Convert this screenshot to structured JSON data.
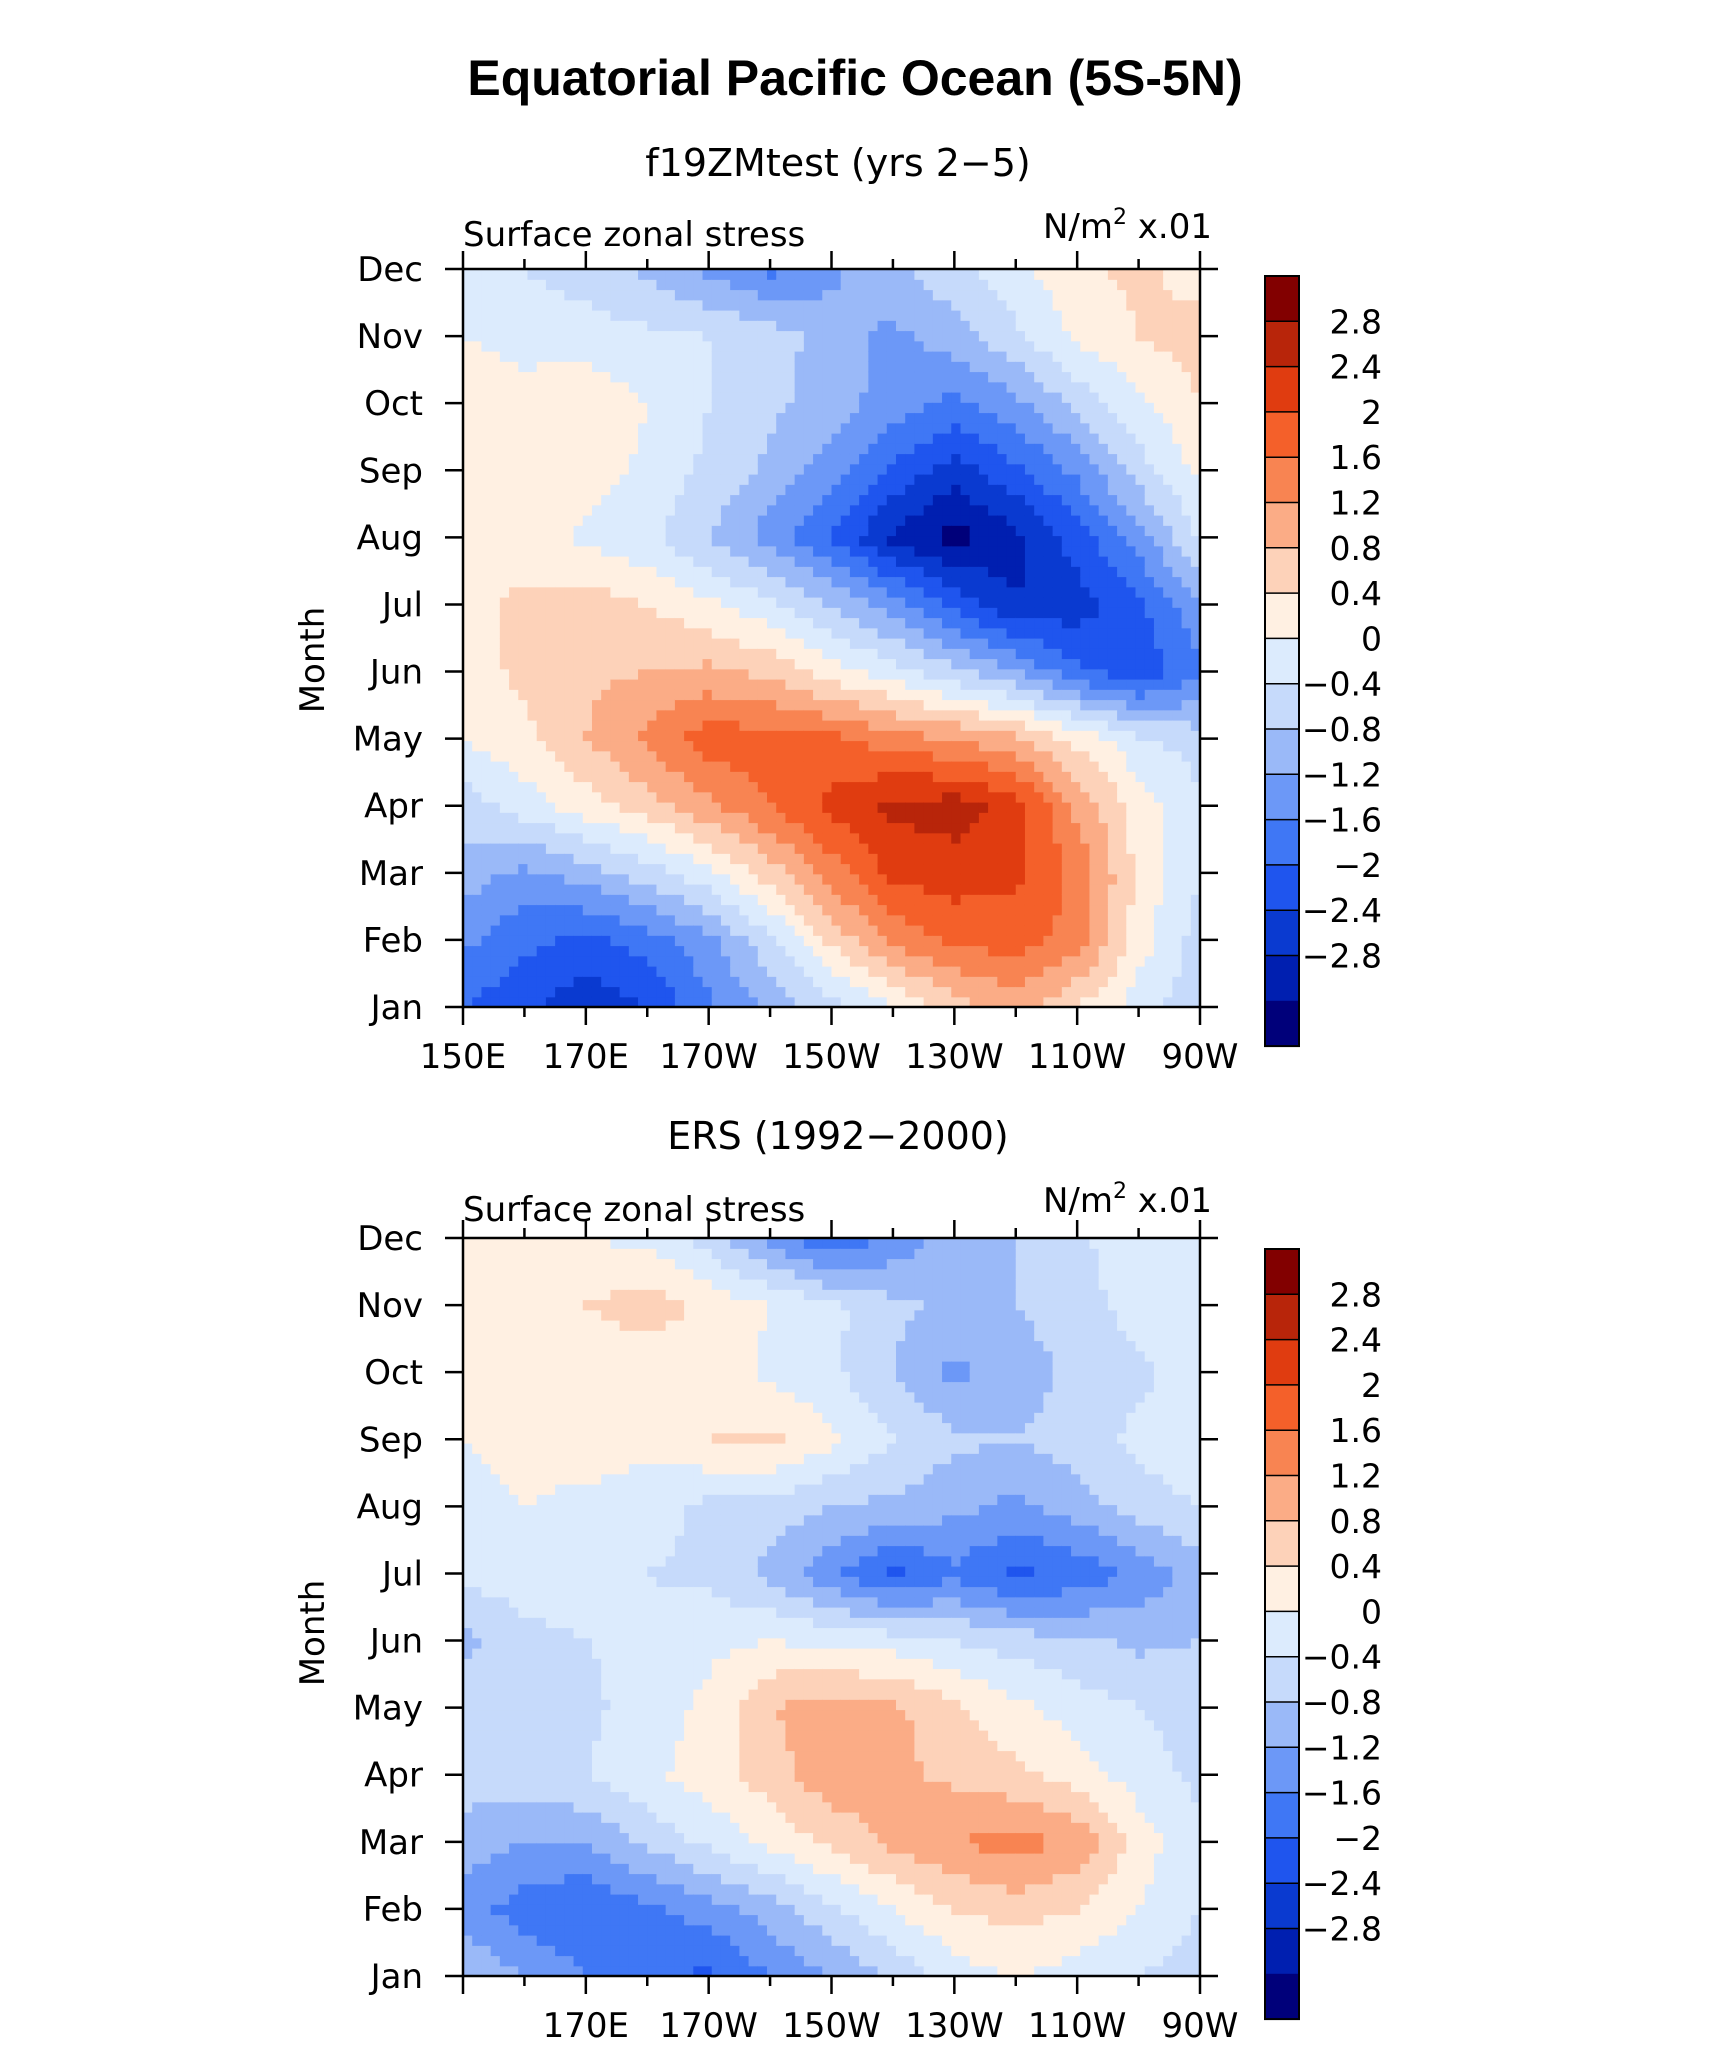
{
  "figure": {
    "title": "Equatorial Pacific Ocean (5S-5N)"
  },
  "colors": [
    "#00007a",
    "#001fb0",
    "#0a3ad0",
    "#1f55ee",
    "#3f77f5",
    "#6c98f7",
    "#9ab9f8",
    "#c6dafb",
    "#dcebfd",
    "#fff0e2",
    "#fdd2b9",
    "#fbac86",
    "#f88452",
    "#f4602a",
    "#e03c10",
    "#b8250a",
    "#820000"
  ],
  "colorbar_labels": [
    "2.8",
    "2.4",
    "2",
    "1.6",
    "1.2",
    "0.8",
    "0.4",
    "0",
    "−0.4",
    "−0.8",
    "−1.2",
    "−1.6",
    "−2",
    "−2.4",
    "−2.8"
  ],
  "chart_data": [
    {
      "type": "heatmap",
      "subtitle": "f19ZMtest (yrs 2−5)",
      "left_label": "Surface zonal stress",
      "right_label": "N/m",
      "right_label_sup": "2",
      "right_label_scale": " x.01",
      "ylabel": "Month",
      "xlabel": "",
      "x_tick_labels": [
        "150E",
        "170E",
        "170W",
        "150W",
        "130W",
        "110W",
        "90W"
      ],
      "y_tick_labels": [
        "Jan",
        "Feb",
        "Mar",
        "Apr",
        "May",
        "Jun",
        "Jul",
        "Aug",
        "Sep",
        "Oct",
        "Nov",
        "Dec"
      ],
      "x_lon_east": [
        150,
        160,
        170,
        180,
        190,
        200,
        210,
        220,
        230,
        240,
        250,
        260,
        270
      ],
      "y_month": [
        1,
        2,
        3,
        4,
        5,
        6,
        7,
        8,
        9,
        10,
        11,
        12
      ],
      "z": [
        [
          -1.6,
          -1.9,
          -2.3,
          -2.0,
          -1.3,
          -0.7,
          -0.2,
          0.4,
          1.0,
          1.4,
          0.8,
          0.2,
          -0.3
        ],
        [
          -1.1,
          -1.5,
          -1.7,
          -1.4,
          -0.9,
          -0.1,
          0.9,
          1.7,
          2.1,
          2.2,
          1.8,
          0.6,
          -0.2
        ],
        [
          -0.6,
          -0.9,
          -0.6,
          -0.2,
          0.3,
          1.0,
          1.8,
          2.5,
          2.6,
          2.5,
          1.9,
          0.7,
          0.0
        ],
        [
          -0.2,
          0.2,
          0.6,
          1.0,
          1.5,
          2.0,
          2.5,
          2.9,
          3.0,
          2.6,
          1.5,
          0.6,
          0.1
        ],
        [
          0.4,
          0.7,
          1.2,
          1.7,
          2.2,
          2.2,
          2.1,
          1.8,
          1.6,
          1.3,
          0.7,
          0.1,
          -0.2
        ],
        [
          0.6,
          0.9,
          1.1,
          1.2,
          1.3,
          1.1,
          0.6,
          0.2,
          -0.3,
          -0.8,
          -1.5,
          -1.9,
          -1.3
        ],
        [
          0.7,
          0.9,
          1.0,
          0.8,
          0.5,
          0.1,
          -0.4,
          -1.0,
          -1.7,
          -2.4,
          -2.2,
          -1.7,
          -0.9
        ],
        [
          0.7,
          0.6,
          0.3,
          0.1,
          -0.4,
          -1.0,
          -1.6,
          -2.5,
          -3.0,
          -2.5,
          -1.8,
          -1.0,
          0.1
        ],
        [
          0.7,
          0.5,
          0.6,
          0.3,
          -0.1,
          -0.5,
          -1.0,
          -1.7,
          -2.2,
          -1.7,
          -1.1,
          -0.2,
          0.5
        ],
        [
          0.6,
          0.5,
          0.7,
          0.4,
          0.0,
          -0.3,
          -0.6,
          -1.0,
          -1.3,
          -0.9,
          -0.3,
          0.3,
          0.8
        ],
        [
          0.4,
          0.3,
          0.2,
          0.1,
          0.0,
          -0.2,
          -0.6,
          -0.9,
          -0.6,
          -0.1,
          0.5,
          0.8,
          1.0
        ],
        [
          0.3,
          0.0,
          -0.2,
          -0.5,
          -0.9,
          -1.3,
          -0.9,
          -0.5,
          -0.1,
          0.3,
          0.7,
          0.9,
          0.6
        ]
      ]
    },
    {
      "type": "heatmap",
      "subtitle": "ERS (1992−2000)",
      "left_label": "Surface zonal stress",
      "right_label": "N/m",
      "right_label_sup": "2",
      "right_label_scale": " x.01",
      "ylabel": "Month",
      "xlabel": "",
      "x_tick_labels": [
        "",
        "170E",
        "170W",
        "150W",
        "130W",
        "110W",
        "90W"
      ],
      "y_tick_labels": [
        "Jan",
        "Feb",
        "Mar",
        "Apr",
        "May",
        "Jun",
        "Jul",
        "Aug",
        "Sep",
        "Oct",
        "Nov",
        "Dec"
      ],
      "x_lon_east": [
        150,
        160,
        170,
        180,
        190,
        200,
        210,
        220,
        230,
        240,
        250,
        260,
        270
      ],
      "y_month": [
        1,
        2,
        3,
        4,
        5,
        6,
        7,
        8,
        9,
        10,
        11,
        12
      ],
      "z": [
        [
          -0.4,
          -0.8,
          -1.2,
          -1.4,
          -1.7,
          -1.2,
          -0.8,
          -0.3,
          0.2,
          0.4,
          0.2,
          0.0,
          -0.2
        ],
        [
          -1.0,
          -1.4,
          -1.6,
          -1.3,
          -1.0,
          -0.6,
          -0.1,
          0.4,
          0.8,
          1.0,
          0.8,
          0.4,
          0.0
        ],
        [
          -0.6,
          -0.8,
          -0.8,
          -0.3,
          0.1,
          0.5,
          0.9,
          1.3,
          1.6,
          1.8,
          1.5,
          0.6,
          0.1
        ],
        [
          -0.2,
          -0.2,
          0.0,
          0.3,
          0.6,
          1.0,
          1.5,
          1.3,
          1.1,
          0.9,
          0.6,
          0.2,
          -0.1
        ],
        [
          -0.1,
          -0.2,
          -0.1,
          0.2,
          0.5,
          1.2,
          1.4,
          1.3,
          0.9,
          0.5,
          0.2,
          0.0,
          -0.2
        ],
        [
          -0.5,
          -0.1,
          0.0,
          0.1,
          0.3,
          0.4,
          0.3,
          0.2,
          0.0,
          -0.2,
          -0.3,
          -0.5,
          -0.4
        ],
        [
          0.1,
          0.2,
          0.1,
          0.0,
          -0.1,
          -0.5,
          -1.1,
          -1.7,
          -1.3,
          -1.7,
          -1.5,
          -1.1,
          -0.6
        ],
        [
          0.3,
          0.4,
          0.3,
          0.2,
          -0.1,
          -0.2,
          -0.4,
          -0.5,
          -0.7,
          -0.9,
          -0.6,
          -0.2,
          0.0
        ],
        [
          0.4,
          0.5,
          0.6,
          0.5,
          0.8,
          0.9,
          0.5,
          0.0,
          -0.3,
          -0.4,
          -0.2,
          0.1,
          0.3
        ],
        [
          0.5,
          0.4,
          0.6,
          0.5,
          0.7,
          0.3,
          0.1,
          -0.4,
          -0.9,
          -0.6,
          -0.3,
          -0.1,
          0.2
        ],
        [
          0.5,
          0.6,
          0.8,
          1.0,
          0.7,
          0.4,
          0.1,
          -0.3,
          -0.5,
          -0.4,
          -0.2,
          0.2,
          0.4
        ],
        [
          0.5,
          0.6,
          0.4,
          0.3,
          -0.2,
          -1.0,
          -1.6,
          -1.1,
          -0.6,
          -0.4,
          -0.1,
          0.3,
          0.4
        ]
      ]
    }
  ]
}
